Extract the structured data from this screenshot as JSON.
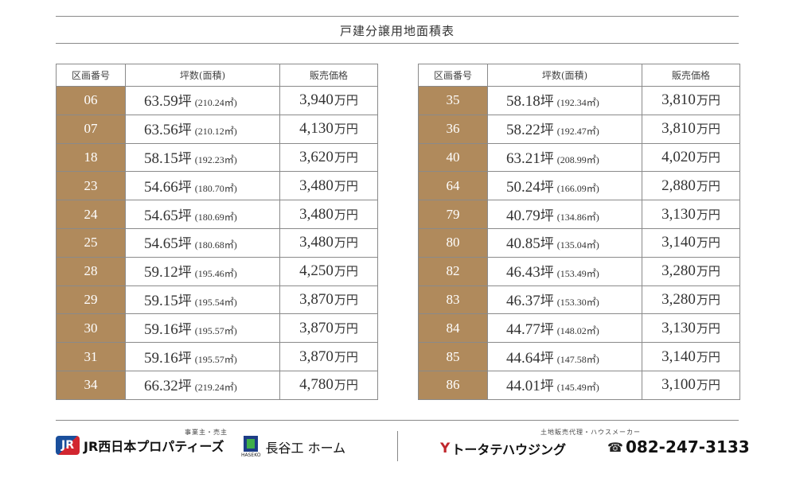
{
  "page": {
    "title": "戸建分譲用地面積表"
  },
  "columns": {
    "lot": "区画番号",
    "area": "坪数(面積)",
    "price": "販売価格"
  },
  "units": {
    "tsubo": "坪",
    "price": "万円"
  },
  "colors": {
    "lot_cell": "#b08a5c",
    "rule": "#8a8a8a"
  },
  "tables": [
    {
      "rows": [
        {
          "lot": "06",
          "tsubo": "63.59",
          "sqm": "(210.24㎡)",
          "price": "3,940"
        },
        {
          "lot": "07",
          "tsubo": "63.56",
          "sqm": "(210.12㎡)",
          "price": "4,130"
        },
        {
          "lot": "18",
          "tsubo": "58.15",
          "sqm": "(192.23㎡)",
          "price": "3,620"
        },
        {
          "lot": "23",
          "tsubo": "54.66",
          "sqm": "(180.70㎡)",
          "price": "3,480"
        },
        {
          "lot": "24",
          "tsubo": "54.65",
          "sqm": "(180.69㎡)",
          "price": "3,480"
        },
        {
          "lot": "25",
          "tsubo": "54.65",
          "sqm": "(180.68㎡)",
          "price": "3,480"
        },
        {
          "lot": "28",
          "tsubo": "59.12",
          "sqm": "(195.46㎡)",
          "price": "4,250"
        },
        {
          "lot": "29",
          "tsubo": "59.15",
          "sqm": "(195.54㎡)",
          "price": "3,870"
        },
        {
          "lot": "30",
          "tsubo": "59.16",
          "sqm": "(195.57㎡)",
          "price": "3,870"
        },
        {
          "lot": "31",
          "tsubo": "59.16",
          "sqm": "(195.57㎡)",
          "price": "3,870"
        },
        {
          "lot": "34",
          "tsubo": "66.32",
          "sqm": "(219.24㎡)",
          "price": "4,780"
        }
      ]
    },
    {
      "rows": [
        {
          "lot": "35",
          "tsubo": "58.18",
          "sqm": "(192.34㎡)",
          "price": "3,810"
        },
        {
          "lot": "36",
          "tsubo": "58.22",
          "sqm": "(192.47㎡)",
          "price": "3,810"
        },
        {
          "lot": "40",
          "tsubo": "63.21",
          "sqm": "(208.99㎡)",
          "price": "4,020"
        },
        {
          "lot": "64",
          "tsubo": "50.24",
          "sqm": "(166.09㎡)",
          "price": "2,880"
        },
        {
          "lot": "79",
          "tsubo": "40.79",
          "sqm": "(134.86㎡)",
          "price": "3,130"
        },
        {
          "lot": "80",
          "tsubo": "40.85",
          "sqm": "(135.04㎡)",
          "price": "3,140"
        },
        {
          "lot": "82",
          "tsubo": "46.43",
          "sqm": "(153.49㎡)",
          "price": "3,280"
        },
        {
          "lot": "83",
          "tsubo": "46.37",
          "sqm": "(153.30㎡)",
          "price": "3,280"
        },
        {
          "lot": "84",
          "tsubo": "44.77",
          "sqm": "(148.02㎡)",
          "price": "3,130"
        },
        {
          "lot": "85",
          "tsubo": "44.64",
          "sqm": "(147.58㎡)",
          "price": "3,140"
        },
        {
          "lot": "86",
          "tsubo": "44.01",
          "sqm": "(145.49㎡)",
          "price": "3,100"
        }
      ]
    }
  ],
  "footer": {
    "left_caption": "事業主・売主",
    "right_caption": "土地販売代理・ハウスメーカー",
    "jr": {
      "mark": "JR",
      "text": "JR西日本プロパティーズ",
      "icon": "jr-west-logo-mark"
    },
    "haseko": {
      "mark_sub": "HASEKO",
      "text": "長谷工 ホーム",
      "icon": "haseko-logo-mark"
    },
    "totate": {
      "mark": "Y",
      "text": "トータテハウジング",
      "icon": "totate-logo-mark"
    },
    "phone": {
      "icon": "phone-icon",
      "number": "082-247-3133"
    }
  }
}
